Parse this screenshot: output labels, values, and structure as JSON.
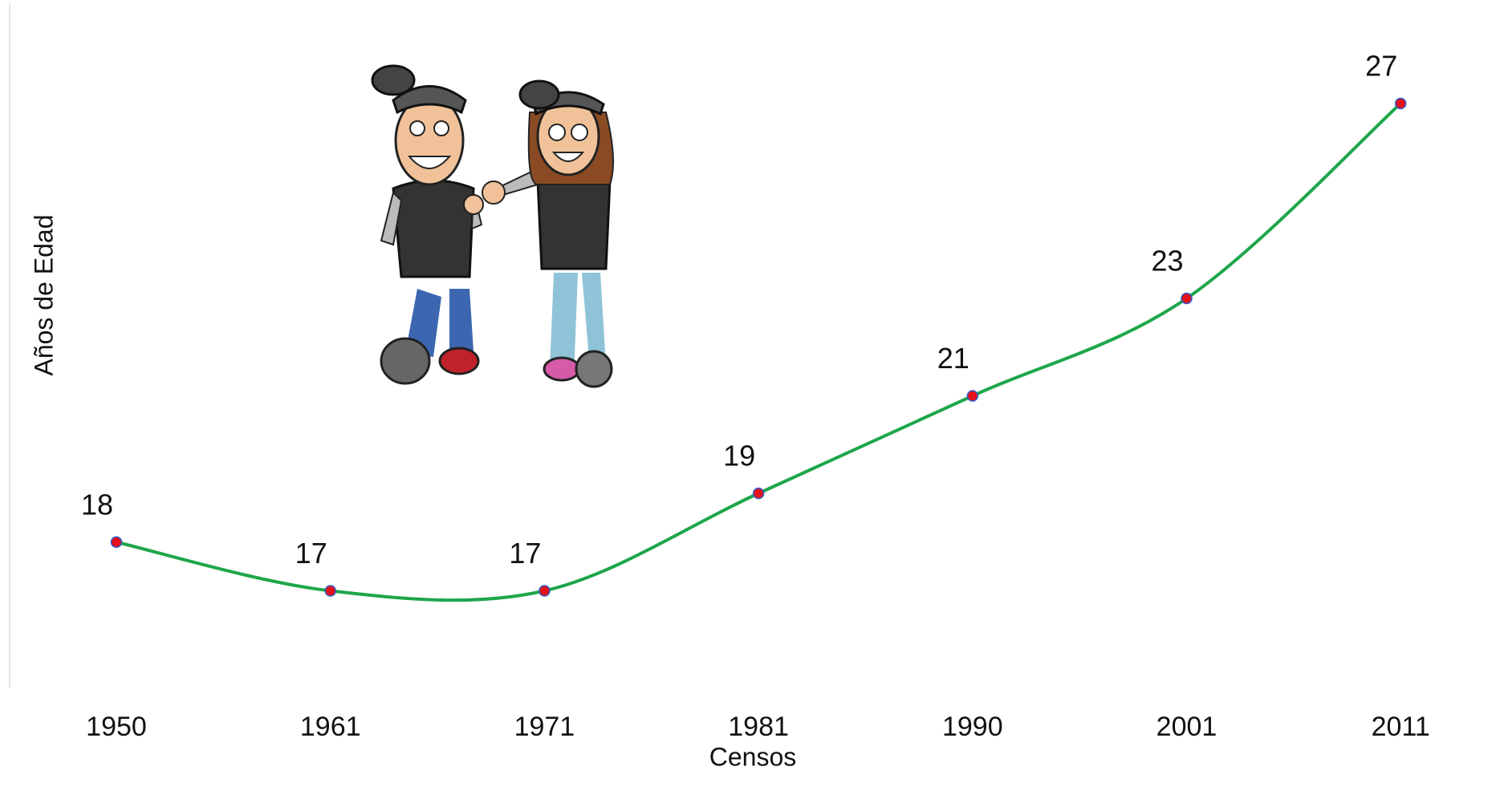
{
  "chart_data": {
    "type": "line",
    "x_label": "Censos",
    "y_label": "Años de Edad",
    "categories": [
      "1950",
      "1961",
      "1971",
      "1981",
      "1990",
      "2001",
      "2011"
    ],
    "series": [
      {
        "color": "#1ea64a",
        "values": [
          18,
          17,
          17,
          19,
          21,
          23,
          27
        ]
      }
    ],
    "ylim": [
      15,
      29
    ],
    "marker_color": "#e3121b",
    "marker_edge_color": "#2c5fd0"
  }
}
